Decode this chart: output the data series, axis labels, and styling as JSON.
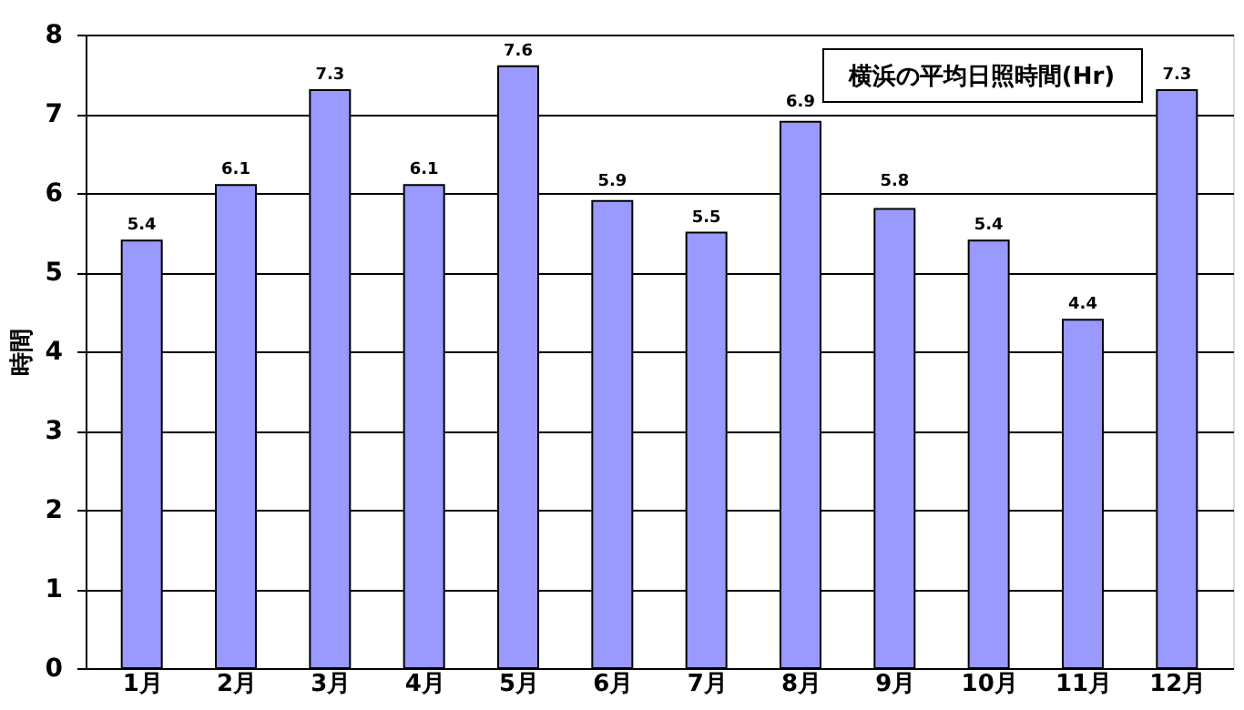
{
  "chart_data": {
    "type": "bar",
    "title": "横浜の平均日照時間(Hr)",
    "ylabel": "時間",
    "categories": [
      "1月",
      "2月",
      "3月",
      "4月",
      "5月",
      "6月",
      "7月",
      "8月",
      "9月",
      "10月",
      "11月",
      "12月"
    ],
    "values": [
      5.4,
      6.1,
      7.3,
      6.1,
      7.6,
      5.9,
      5.5,
      6.9,
      5.8,
      5.4,
      4.4,
      7.3
    ],
    "color": "#9999ff",
    "ylim": [
      0,
      8
    ],
    "yticks": [
      0,
      1,
      2,
      3,
      4,
      5,
      6,
      7,
      8
    ],
    "grid": "y",
    "data_labels": true
  }
}
